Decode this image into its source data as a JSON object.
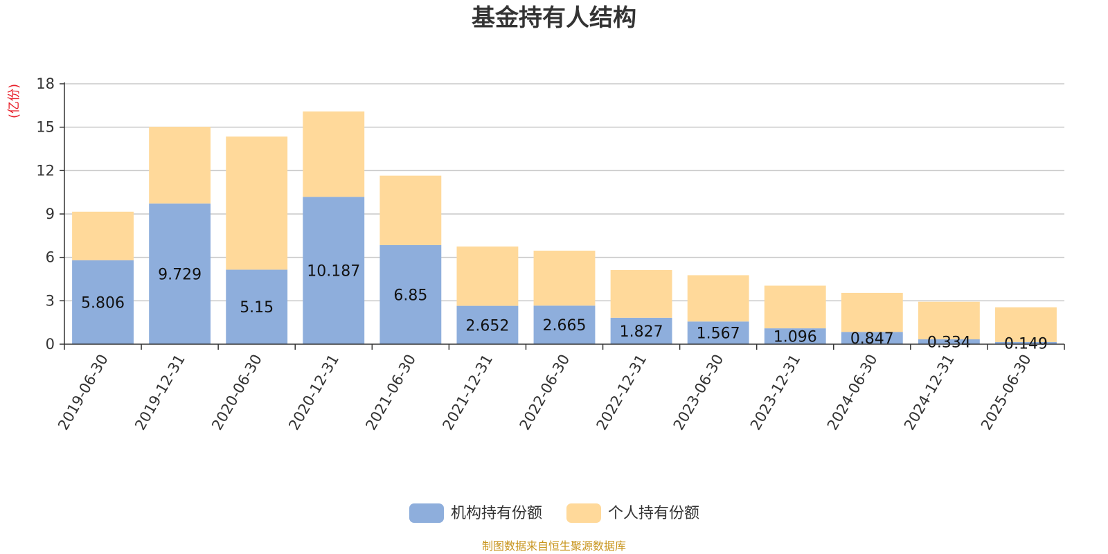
{
  "chart_data": {
    "type": "bar",
    "stacked": true,
    "title": "基金持有人结构",
    "ylabel": "(亿份)",
    "ylim": [
      0,
      18
    ],
    "yticks": [
      "0",
      "3",
      "6",
      "9",
      "12",
      "15",
      "18"
    ],
    "grid": true,
    "legend_position": "bottom",
    "categories": [
      "2019-06-30",
      "2019-12-31",
      "2020-06-30",
      "2020-12-31",
      "2021-06-30",
      "2021-12-31",
      "2022-06-30",
      "2022-12-31",
      "2023-06-30",
      "2023-12-31",
      "2024-06-30",
      "2024-12-31",
      "2025-06-30"
    ],
    "series": [
      {
        "name": "机构持有份额",
        "color": "#8eaedc",
        "values": [
          5.806,
          9.729,
          5.15,
          10.187,
          6.85,
          2.652,
          2.665,
          1.827,
          1.567,
          1.096,
          0.847,
          0.334,
          0.149
        ],
        "labels": [
          "5.806",
          "9.729",
          "5.15",
          "10.187",
          "6.85",
          "2.652",
          "2.665",
          "1.827",
          "1.567",
          "1.096",
          "0.847",
          "0.334",
          "0.149"
        ]
      },
      {
        "name": "个人持有份额",
        "color": "#ffd99a",
        "values": [
          3.35,
          5.3,
          9.2,
          5.9,
          4.8,
          4.1,
          3.8,
          3.3,
          3.2,
          2.95,
          2.7,
          2.6,
          2.4
        ]
      }
    ],
    "unit_color": "#e8212b",
    "source_color": "#c8951e"
  },
  "source_text": "制图数据来自恒生聚源数据库"
}
